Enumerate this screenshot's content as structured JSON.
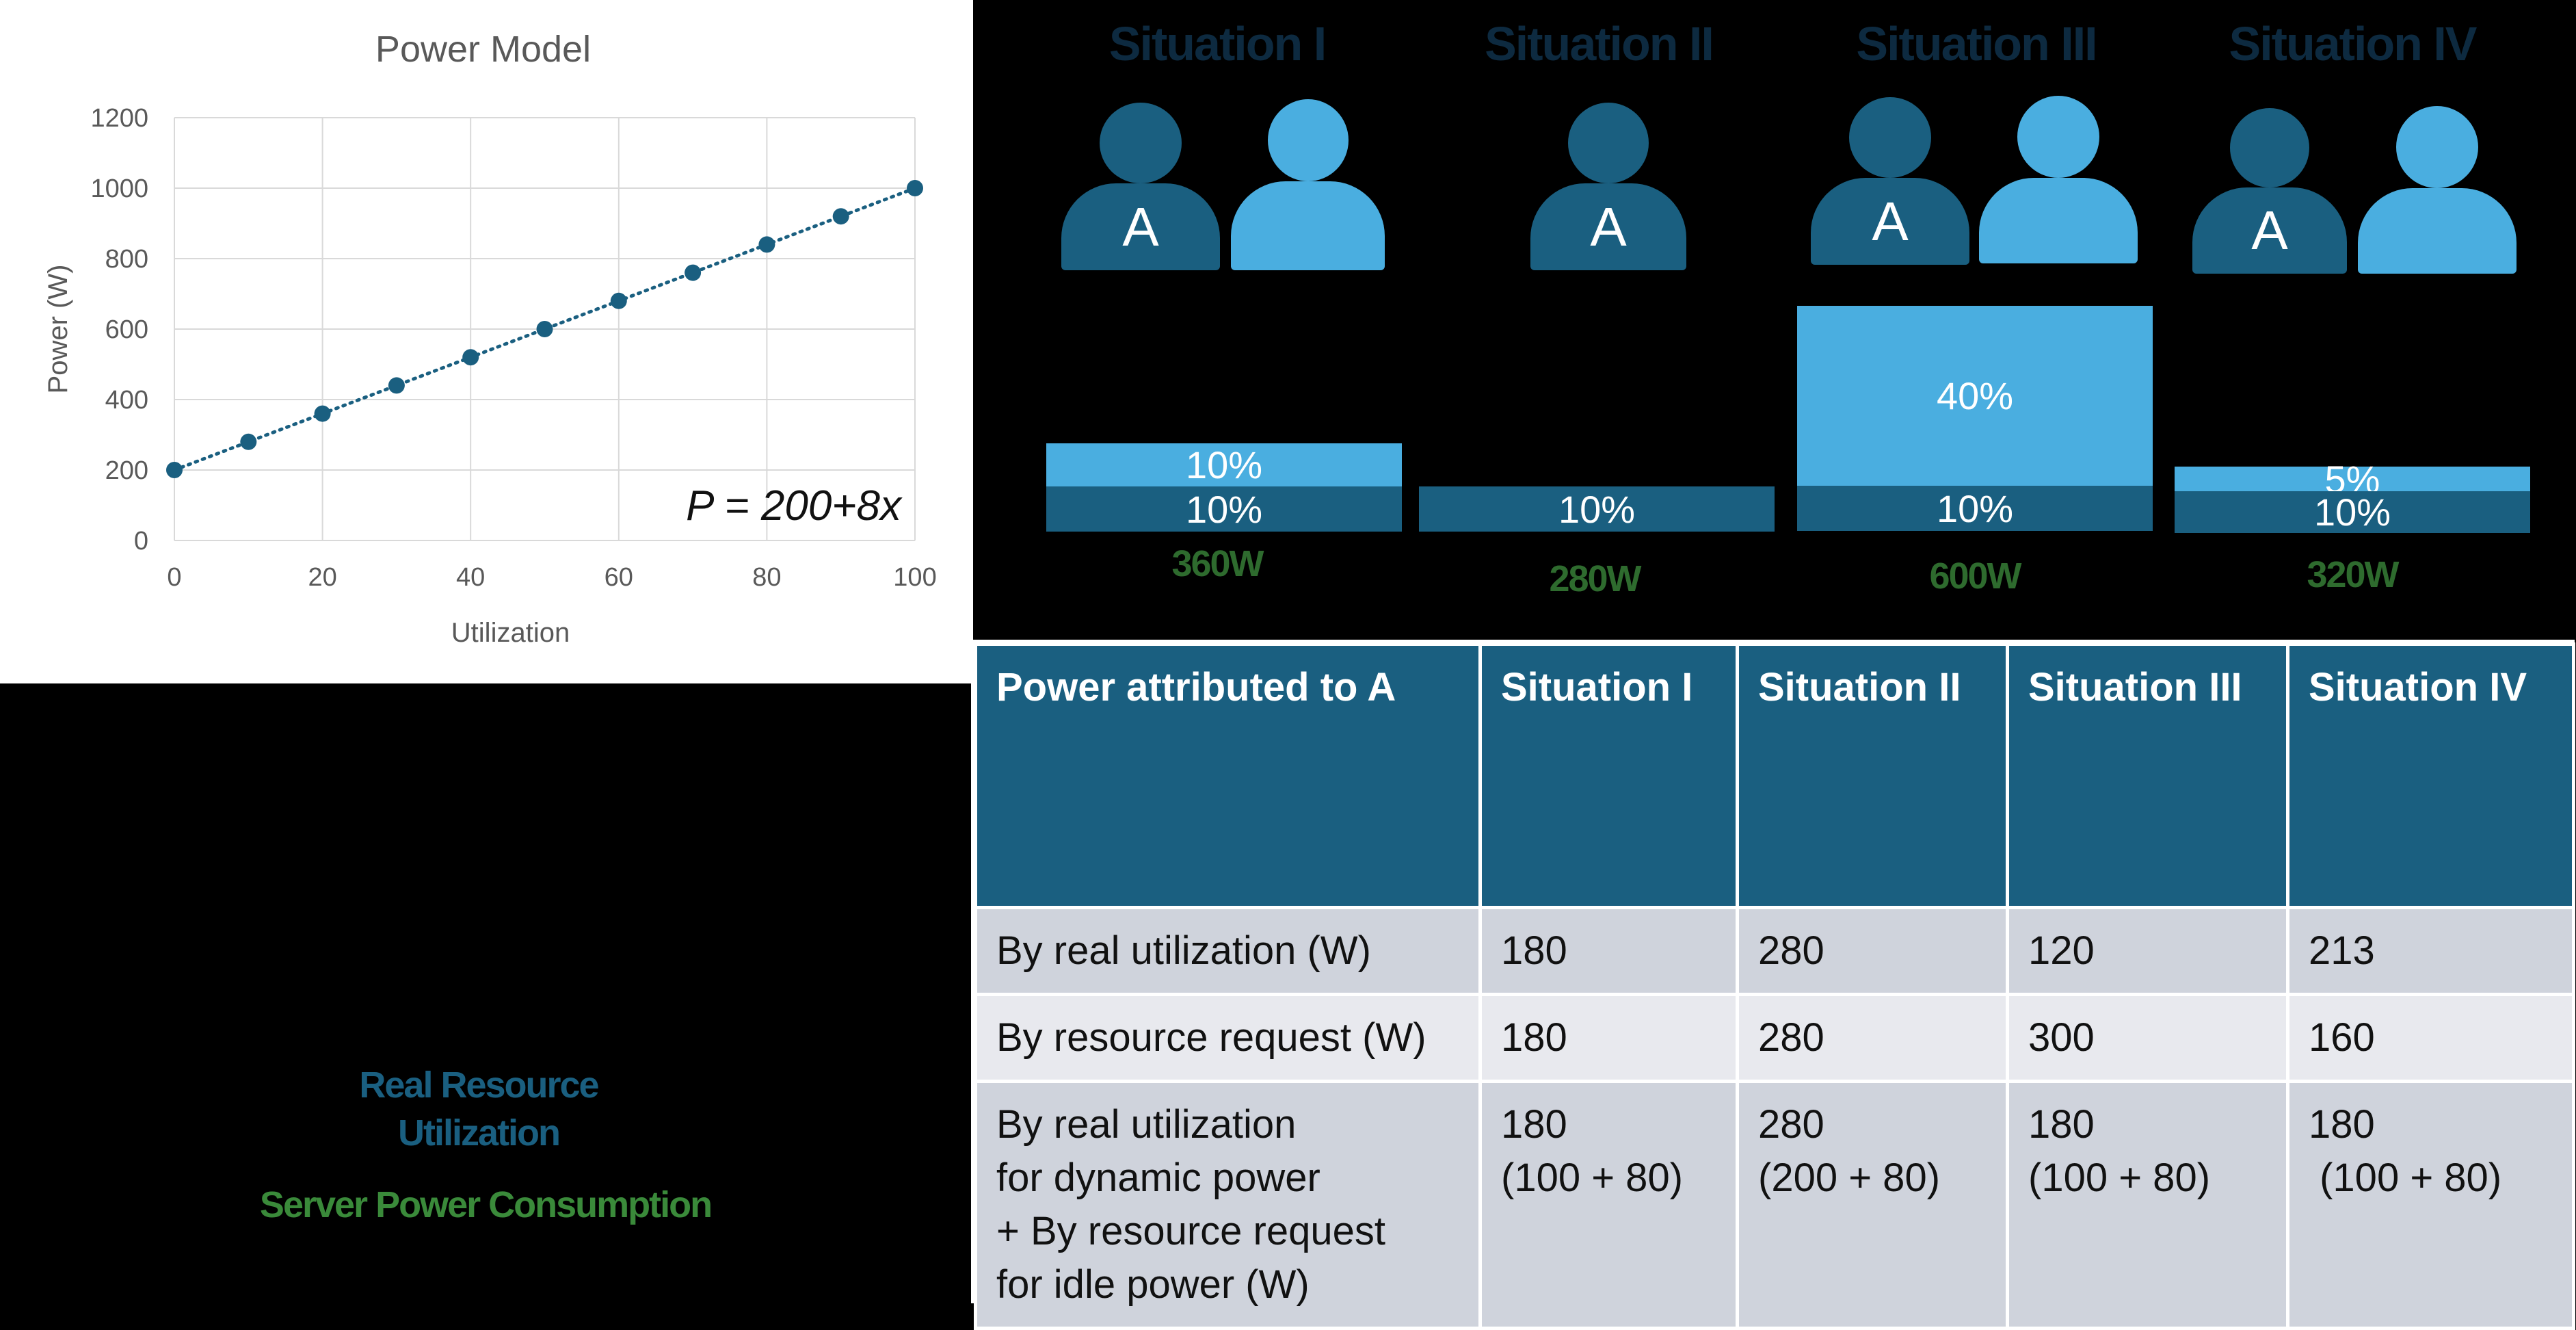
{
  "chart_data": {
    "type": "scatter",
    "title": "Power Model",
    "xlabel": "Utilization",
    "ylabel": "Power (W)",
    "xlim": [
      0,
      100
    ],
    "ylim": [
      0,
      1200
    ],
    "xticks": [
      "0",
      "20",
      "40",
      "60",
      "80",
      "100"
    ],
    "yticks": [
      "0",
      "200",
      "400",
      "600",
      "800",
      "1000",
      "1200"
    ],
    "x": [
      0,
      10,
      20,
      30,
      40,
      50,
      60,
      70,
      80,
      90,
      100
    ],
    "y": [
      200,
      280,
      360,
      440,
      520,
      600,
      680,
      760,
      840,
      920,
      1000
    ],
    "trendline": "dotted linear",
    "grid": true,
    "annotation": "P = 200+8x",
    "colors": {
      "points": "#1a5f80",
      "grid": "#d9d9d9"
    }
  },
  "situations": [
    {
      "title": "Situation I",
      "watts": "360W"
    },
    {
      "title": "Situation II",
      "watts": "280W"
    },
    {
      "title": "Situation III",
      "watts": "600W"
    },
    {
      "title": "Situation IV",
      "watts": "320W"
    }
  ],
  "people": {
    "label_a": "A"
  },
  "bars": {
    "s1_light": "10%",
    "s1_dark": "10%",
    "s2_dark": "10%",
    "s3_light": "40%",
    "s3_dark": "10%",
    "s4_light": "5%",
    "s4_dark": "10%"
  },
  "legend": {
    "real_line1": "Real Resource",
    "real_line2": "Utilization",
    "server": "Server Power Consumption"
  },
  "table": {
    "headers": [
      "Power attributed to A",
      "Situation I",
      "Situation II",
      "Situation III",
      "Situation IV"
    ],
    "rows": [
      {
        "label": "By real utilization (W)",
        "values": [
          "180",
          "280",
          "120",
          "213"
        ]
      },
      {
        "label": "By resource request (W)",
        "values": [
          "180",
          "280",
          "300",
          "160"
        ]
      },
      {
        "label_lines": [
          "By real utilization",
          "for dynamic power",
          "+ By resource request",
          "for idle power (W)"
        ],
        "values": [
          {
            "total": "180",
            "formula": "(100 + 80)"
          },
          {
            "total": "280",
            "formula": "(200 + 80)"
          },
          {
            "total": "180",
            "formula": "(100 + 80)"
          },
          {
            "total": "180",
            "formula": " (100 + 80)"
          }
        ]
      }
    ]
  },
  "colors": {
    "dark_blue": "#1a5f80",
    "light_blue": "#4aaee0",
    "green_text": "#2e6b2e"
  }
}
